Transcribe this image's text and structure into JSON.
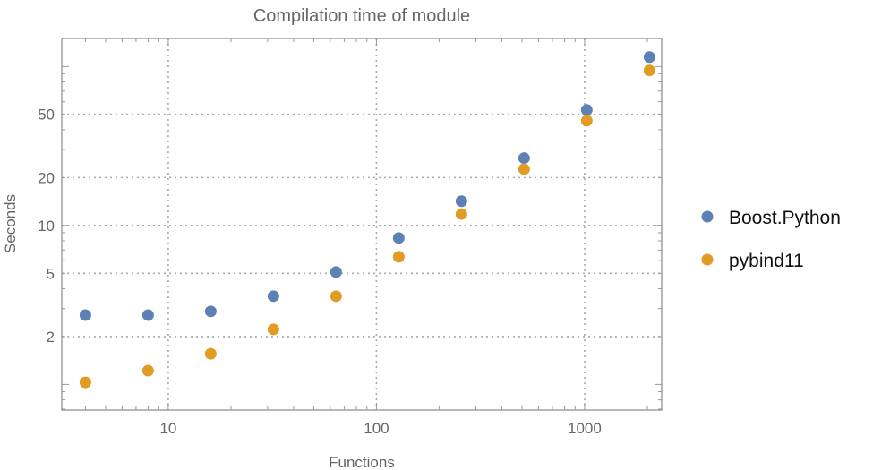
{
  "chart_data": {
    "type": "scatter",
    "title": "Compilation time of module",
    "xlabel": "Functions",
    "ylabel": "Seconds",
    "xscale": "log",
    "yscale": "log",
    "xlim": [
      3.08,
      2345
    ],
    "ylim": [
      0.69,
      150
    ],
    "xticks": [
      10,
      100,
      1000
    ],
    "xtick_labels": [
      "10",
      "100",
      "1000"
    ],
    "yticks": [
      2,
      5,
      10,
      20,
      50
    ],
    "ytick_labels": [
      "2",
      "5",
      "10",
      "20",
      "50"
    ],
    "grid": true,
    "legend": "right",
    "x": [
      4,
      8,
      16,
      32,
      64,
      128,
      256,
      512,
      1024,
      2048
    ],
    "series": [
      {
        "name": "Boost.Python",
        "color": "#5e81b5",
        "values": [
          2.73,
          2.73,
          2.88,
          3.59,
          5.09,
          8.34,
          14.2,
          26.5,
          53.3,
          114.6
        ]
      },
      {
        "name": "pybind11",
        "color": "#e19c24",
        "values": [
          1.03,
          1.22,
          1.56,
          2.22,
          3.59,
          6.35,
          11.8,
          22.6,
          45.6,
          94.4
        ]
      }
    ]
  }
}
